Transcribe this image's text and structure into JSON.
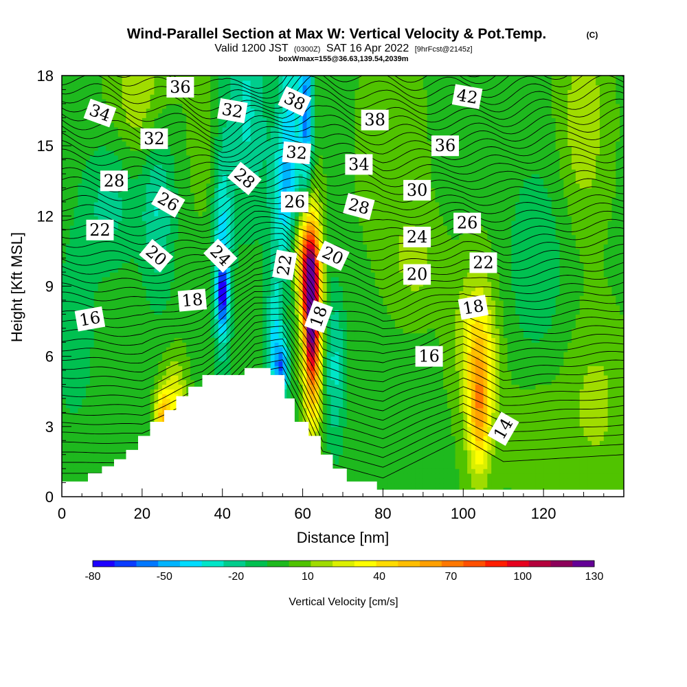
{
  "title": {
    "main": "Wind-Parallel Section at Max W: Vertical Velocity & Pot.Temp.",
    "copyright": "(C)",
    "valid_prefix": "Valid 1200 JST",
    "valid_utc": "(0300Z)",
    "valid_date": "SAT 16 Apr 2022",
    "forecast": "[9hrFcst@2145z]",
    "box": "boxWmax=155@36.63,139.54,2039m"
  },
  "chart_data": {
    "type": "heatmap",
    "xlabel": "Distance [nm]",
    "ylabel": "Height [Kft MSL]",
    "xlim": [
      0,
      140
    ],
    "ylim": [
      0,
      18
    ],
    "x_ticks": [
      0,
      20,
      40,
      60,
      80,
      100,
      120
    ],
    "y_ticks": [
      0,
      3,
      6,
      9,
      12,
      15,
      18
    ],
    "terrain": [
      [
        0,
        0.65
      ],
      [
        6.5,
        0.65
      ],
      [
        6.5,
        1.0
      ],
      [
        10,
        1.0
      ],
      [
        10,
        1.3
      ],
      [
        13,
        1.3
      ],
      [
        13,
        1.6
      ],
      [
        16,
        1.6
      ],
      [
        16,
        2.0
      ],
      [
        19,
        2.0
      ],
      [
        19,
        2.6
      ],
      [
        22,
        2.6
      ],
      [
        22,
        3.2
      ],
      [
        25.5,
        3.2
      ],
      [
        25.5,
        3.7
      ],
      [
        28.5,
        3.7
      ],
      [
        28.5,
        4.3
      ],
      [
        31.5,
        4.3
      ],
      [
        31.5,
        4.7
      ],
      [
        35,
        4.7
      ],
      [
        35,
        5.2
      ],
      [
        45.5,
        5.2
      ],
      [
        45.5,
        5.5
      ],
      [
        52,
        5.5
      ],
      [
        52,
        5.2
      ],
      [
        55.5,
        5.2
      ],
      [
        55.5,
        4.2
      ],
      [
        58,
        4.2
      ],
      [
        58,
        3.2
      ],
      [
        61.5,
        3.2
      ],
      [
        61.5,
        2.6
      ],
      [
        64.5,
        2.6
      ],
      [
        64.5,
        1.8
      ],
      [
        67.5,
        1.8
      ],
      [
        67.5,
        1.2
      ],
      [
        71,
        1.2
      ],
      [
        71,
        0.65
      ],
      [
        78.5,
        0.65
      ],
      [
        78.5,
        0.3
      ],
      [
        140,
        0.3
      ]
    ],
    "colorbar": {
      "label": "Vertical Velocity [cm/s]",
      "tick_labels": [
        "-80",
        "-50",
        "-20",
        "10",
        "40",
        "70",
        "100",
        "130"
      ],
      "colors": [
        "#1e00ff",
        "#0a3cff",
        "#0078ff",
        "#00b4ff",
        "#00dcff",
        "#00e6c8",
        "#00cd8c",
        "#00c050",
        "#1eb91e",
        "#50c300",
        "#a0dc00",
        "#dcf000",
        "#ffff00",
        "#ffdc00",
        "#ffbe00",
        "#ffa000",
        "#ff7800",
        "#ff5000",
        "#ff1e00",
        "#e6001e",
        "#b4003c",
        "#8c005a",
        "#640096"
      ]
    },
    "velocity_features": [
      {
        "x": 46,
        "y": 16.5,
        "sx": 4,
        "sy": 3.5,
        "v": -30
      },
      {
        "x": 24,
        "y": 12.5,
        "sx": 3,
        "sy": 3,
        "v": -28
      },
      {
        "x": 20,
        "y": 17,
        "sx": 5,
        "sy": 2,
        "v": 22
      },
      {
        "x": 57,
        "y": 16,
        "sx": 2,
        "sy": 4,
        "v": -35
      },
      {
        "x": 61,
        "y": 16.5,
        "sx": 1.2,
        "sy": 2.5,
        "v": -60
      },
      {
        "x": 55,
        "y": 12.5,
        "sx": 2.5,
        "sy": 2.5,
        "v": -30
      },
      {
        "x": 40,
        "y": 10,
        "sx": 1.6,
        "sy": 3,
        "v": -45
      },
      {
        "x": 40,
        "y": 8.6,
        "sx": 0.9,
        "sy": 1.0,
        "v": -50
      },
      {
        "x": 53,
        "y": 6.5,
        "sx": 1.5,
        "sy": 2,
        "v": -40
      },
      {
        "x": 55,
        "y": 5.5,
        "sx": 1.2,
        "sy": 0.8,
        "v": -50
      },
      {
        "x": 62.5,
        "y": 7.5,
        "sx": 1.6,
        "sy": 3,
        "v": 100
      },
      {
        "x": 61.5,
        "y": 9.5,
        "sx": 1.6,
        "sy": 1.6,
        "v": 70
      },
      {
        "x": 62,
        "y": 7.5,
        "sx": 0.8,
        "sy": 1.6,
        "v": 40
      },
      {
        "x": 59,
        "y": 10.5,
        "sx": 2,
        "sy": 1.5,
        "v": 30
      },
      {
        "x": 68,
        "y": 5.5,
        "sx": 2,
        "sy": 2.5,
        "v": -30
      },
      {
        "x": 104,
        "y": 4.5,
        "sx": 2.5,
        "sy": 2.5,
        "v": 45
      },
      {
        "x": 104,
        "y": 3.5,
        "sx": 1.5,
        "sy": 1.5,
        "v": 25
      },
      {
        "x": 103,
        "y": 7,
        "sx": 4,
        "sy": 2,
        "v": 22
      },
      {
        "x": 88,
        "y": 10,
        "sx": 4,
        "sy": 1.5,
        "v": 15
      },
      {
        "x": 130,
        "y": 16,
        "sx": 4,
        "sy": 3,
        "v": 20
      },
      {
        "x": 133,
        "y": 4,
        "sx": 5,
        "sy": 2.5,
        "v": 15
      },
      {
        "x": 28,
        "y": 4,
        "sx": 2,
        "sy": 1.3,
        "v": 35
      },
      {
        "x": 25,
        "y": 3.5,
        "sx": 1.2,
        "sy": 0.8,
        "v": 50
      },
      {
        "x": 12,
        "y": 12.5,
        "sx": 5,
        "sy": 2,
        "v": -22
      },
      {
        "x": 35,
        "y": 15.5,
        "sx": 2,
        "sy": 2,
        "v": 12
      },
      {
        "x": 82,
        "y": 15,
        "sx": 5,
        "sy": 3,
        "v": 12
      },
      {
        "x": 118,
        "y": 10,
        "sx": 5,
        "sy": 3,
        "v": -18
      },
      {
        "x": 3,
        "y": 7,
        "sx": 4,
        "sy": 3,
        "v": -15
      },
      {
        "x": 118,
        "y": 3,
        "sx": 6,
        "sy": 2,
        "v": 8
      }
    ],
    "isentrope_base": [
      [
        0,
        1.0
      ],
      [
        20,
        1.0
      ],
      [
        35,
        2.5
      ],
      [
        48,
        5.0
      ],
      [
        55,
        5.2
      ],
      [
        60,
        3.5
      ],
      [
        65,
        1.5
      ],
      [
        80,
        0.8
      ],
      [
        100,
        2.5
      ],
      [
        110,
        1.5
      ],
      [
        140,
        1.8
      ]
    ],
    "isentrope_top": [
      [
        0,
        19.0
      ],
      [
        20,
        18.5
      ],
      [
        40,
        17.5
      ],
      [
        55,
        18.0
      ],
      [
        62,
        19.0
      ],
      [
        80,
        18.5
      ],
      [
        100,
        18.2
      ],
      [
        120,
        18.8
      ],
      [
        140,
        19.2
      ]
    ],
    "isentrope_count": 48,
    "contour_labels": [
      {
        "text": "34",
        "x": 9.5,
        "y": 16.4,
        "rot": 20
      },
      {
        "text": "36",
        "x": 29.5,
        "y": 17.5,
        "rot": 0
      },
      {
        "text": "32",
        "x": 23,
        "y": 15.3,
        "rot": 0
      },
      {
        "text": "32",
        "x": 42.5,
        "y": 16.5,
        "rot": 10
      },
      {
        "text": "38",
        "x": 58,
        "y": 16.9,
        "rot": 25
      },
      {
        "text": "38",
        "x": 78,
        "y": 16.1,
        "rot": 0
      },
      {
        "text": "42",
        "x": 101,
        "y": 17.1,
        "rot": 10
      },
      {
        "text": "32",
        "x": 58.5,
        "y": 14.7,
        "rot": 5
      },
      {
        "text": "36",
        "x": 95.5,
        "y": 15.0,
        "rot": 0
      },
      {
        "text": "34",
        "x": 74,
        "y": 14.2,
        "rot": 0
      },
      {
        "text": "28",
        "x": 13,
        "y": 13.5,
        "rot": 0
      },
      {
        "text": "28",
        "x": 45.5,
        "y": 13.6,
        "rot": 40
      },
      {
        "text": "26",
        "x": 26.5,
        "y": 12.6,
        "rot": 30
      },
      {
        "text": "26",
        "x": 58,
        "y": 12.6,
        "rot": 0
      },
      {
        "text": "28",
        "x": 74,
        "y": 12.4,
        "rot": 15
      },
      {
        "text": "30",
        "x": 88.5,
        "y": 13.1,
        "rot": 0
      },
      {
        "text": "22",
        "x": 9.5,
        "y": 11.4,
        "rot": 0
      },
      {
        "text": "26",
        "x": 101,
        "y": 11.7,
        "rot": 0
      },
      {
        "text": "24",
        "x": 88.5,
        "y": 11.1,
        "rot": 0
      },
      {
        "text": "20",
        "x": 23.5,
        "y": 10.3,
        "rot": 40
      },
      {
        "text": "24",
        "x": 39.5,
        "y": 10.3,
        "rot": 45
      },
      {
        "text": "22",
        "x": 55.5,
        "y": 9.9,
        "rot": -80
      },
      {
        "text": "20",
        "x": 67.5,
        "y": 10.3,
        "rot": 25
      },
      {
        "text": "22",
        "x": 105,
        "y": 10.0,
        "rot": 0
      },
      {
        "text": "20",
        "x": 88.5,
        "y": 9.5,
        "rot": 0
      },
      {
        "text": "18",
        "x": 32.5,
        "y": 8.4,
        "rot": -5
      },
      {
        "text": "18",
        "x": 64,
        "y": 7.7,
        "rot": -70
      },
      {
        "text": "18",
        "x": 102.5,
        "y": 8.1,
        "rot": -10
      },
      {
        "text": "16",
        "x": 7,
        "y": 7.6,
        "rot": -10
      },
      {
        "text": "16",
        "x": 91.5,
        "y": 6.0,
        "rot": 0
      },
      {
        "text": "14",
        "x": 110,
        "y": 2.9,
        "rot": -60
      }
    ]
  }
}
